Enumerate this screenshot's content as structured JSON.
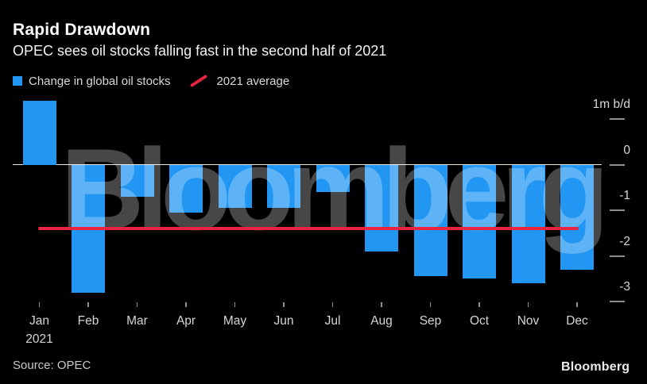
{
  "header": {
    "title": "Rapid Drawdown",
    "subtitle": "OPEC sees oil stocks falling fast in the second half of 2021"
  },
  "legend": {
    "bars_label": "Change in global oil stocks",
    "average_label": "2021 average"
  },
  "chart_data": {
    "type": "bar",
    "title": "Rapid Drawdown",
    "subtitle": "OPEC sees oil stocks falling fast in the second half of 2021",
    "categories": [
      "Jan",
      "Feb",
      "Mar",
      "Apr",
      "May",
      "Jun",
      "Jul",
      "Aug",
      "Sep",
      "Oct",
      "Nov",
      "Dec"
    ],
    "x_sub_label": "2021",
    "series_label": "Change in global oil stocks",
    "values": [
      1.4,
      -2.8,
      -0.7,
      -1.05,
      -0.95,
      -0.95,
      -0.6,
      -1.9,
      -2.45,
      -2.5,
      -2.6,
      -2.3
    ],
    "average_line": {
      "label": "2021 average",
      "value": -1.4
    },
    "y_axis": [
      {
        "value": 1,
        "label": "1m b/d"
      },
      {
        "value": 0,
        "label": "0"
      },
      {
        "value": -1,
        "label": "-1"
      },
      {
        "value": -2,
        "label": "-2"
      },
      {
        "value": -3,
        "label": "-3"
      }
    ],
    "ylim": [
      -3.3,
      1.45
    ],
    "grid": false,
    "legend_position": "top",
    "colors": {
      "bar": "#2196f3",
      "average_line": "#e8243f",
      "background": "#000000",
      "axis_line": "#ece7da",
      "tick": "#8f8f8f",
      "label_text": "#d6d6d6"
    }
  },
  "watermark": "Bloomberg",
  "footer": {
    "source": "Source: OPEC",
    "logo": "Bloomberg"
  }
}
